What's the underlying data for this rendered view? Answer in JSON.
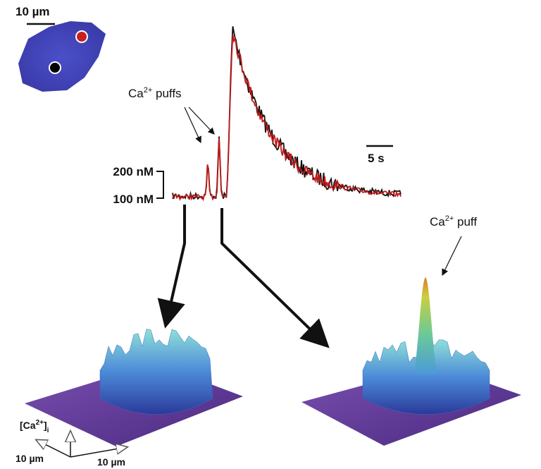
{
  "scale_bar_image": "10 µm",
  "puffs_label": {
    "base": "Ca",
    "sup": "2+",
    "rest": " puffs"
  },
  "time_scale": "5 s",
  "conc_scale": {
    "top": "200 nM",
    "bottom": "100 nM"
  },
  "puff_label": {
    "base": "Ca",
    "sup": "2+",
    "rest": " puff"
  },
  "axes_3d": {
    "z": {
      "open": "[Ca",
      "sup": "2+",
      "close": "]",
      "sub": "i"
    },
    "x": "10 µm",
    "y": "10 µm"
  }
}
